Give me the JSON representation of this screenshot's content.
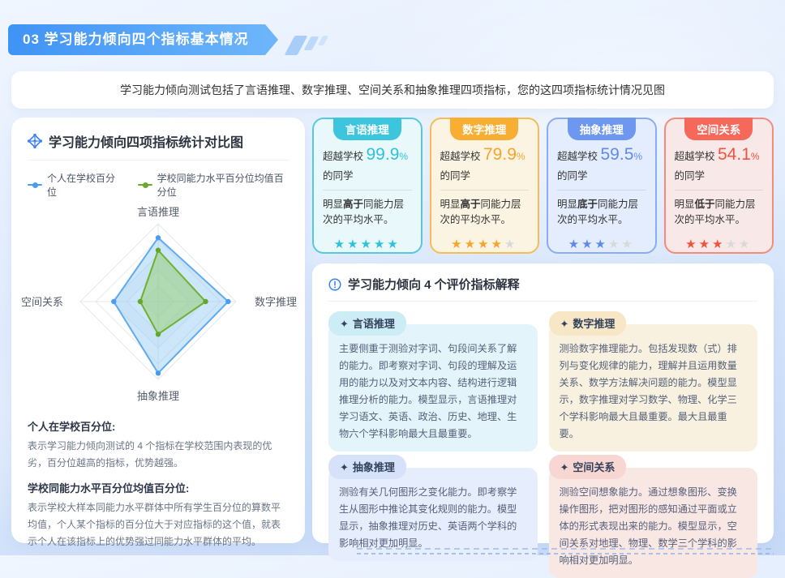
{
  "banner": {
    "title": "03 学习能力倾向四个指标基本情况"
  },
  "intro": {
    "text": "学习能力倾向测试包括了言语推理、数字推理、空间关系和抽象推理四项指标，您的这四项指标统计情况见图"
  },
  "radar_panel": {
    "title": "学习能力倾向四项指标统计对比图",
    "legend": [
      {
        "label": "个人在学校百分位",
        "color": "#4a9cf0"
      },
      {
        "label": "学校同能力水平百分位均值百分位",
        "color": "#6aa92e"
      }
    ],
    "notes": [
      {
        "heading": "个人在学校百分位:",
        "body": "表示学习能力倾向测试的 4 个指标在学校范围内表现的优劣，百分位越高的指标，优势越强。"
      },
      {
        "heading": "学校同能力水平百分位均值百分位:",
        "body": "表示学校大样本同能力水平群体中所有学生百分位的算数平均值，个人某个指标的百分位大于对应指标的这个值，就表示个人在该指标上的优势强过同能力水平群体的平均。"
      }
    ]
  },
  "chart_data": {
    "type": "radar",
    "categories": [
      "言语推理",
      "数字推理",
      "抽象推理",
      "空间关系"
    ],
    "series": [
      {
        "name": "个人在学校百分位",
        "color": "#62aaef",
        "fill": "rgba(141,199,244,0.45)",
        "dot": "#4a9cf0",
        "values": [
          82,
          90,
          92,
          57
        ]
      },
      {
        "name": "学校同能力水平百分位均值百分位",
        "color": "#6fb12f",
        "fill": "rgba(148,205,106,0.50)",
        "dot": "#63a82a",
        "values": [
          66,
          61,
          42,
          23
        ]
      }
    ],
    "max": 100,
    "levels": 5,
    "grid": "diamond",
    "legend_position": "top"
  },
  "score_common": {
    "prefix": "超越学校",
    "percent_sign": "%",
    "suffix": "的同学",
    "desc_pre": "明显",
    "desc_post": "同能力层次的平均水平。"
  },
  "score_cards": [
    {
      "label": "言语推理",
      "percent": "99.9",
      "desc_bold": "高于",
      "stars_active": "★★★★★",
      "stars_inactive": "",
      "accent": "#2fc1dc"
    },
    {
      "label": "数字推理",
      "percent": "79.9",
      "desc_bold": "高于",
      "stars_active": "★★★★",
      "stars_inactive": "★",
      "accent": "#f6a42a"
    },
    {
      "label": "抽象推理",
      "percent": "59.5",
      "desc_bold": "底于",
      "stars_active": "★★★",
      "stars_inactive": "★★",
      "accent": "#5d8bec"
    },
    {
      "label": "空间关系",
      "percent": "54.1",
      "desc_bold": "低于",
      "stars_active": "★★★",
      "stars_inactive": "★★",
      "accent": "#f4513d"
    }
  ],
  "explain_panel": {
    "title": "学习能力倾向 4 个评价指标解释",
    "bullet": "✦",
    "items": [
      {
        "label": "言语推理",
        "text": "主要侧重于测验对字词、句段间关系了解的能力。即考察对字词、句段的理解及运用的能力以及对文本内容、结构进行逻辑推理分析的能力。模型显示，言语推理对学习语文、英语、政治、历史、地理、生物六个学科影响最大且最重要。"
      },
      {
        "label": "数字推理",
        "text": "测验数字推理能力。包括发现数（式）排列与变化规律的能力，理解并且运用数量关系、数学方法解决问题的能力。模型显示，数字推理对学习数学、物理、化学三个学科影响最大且最重要。最大且最重要。"
      },
      {
        "label": "抽象推理",
        "text": "测验有关几何图形之变化能力。即考察学生从图形中推论其变化规则的能力。模型显示，抽象推理对历史、英语两个学科的影响相对更加明显。"
      },
      {
        "label": "空间关系",
        "text": "测验空间想象能力。通过想象图形、变换操作图形，把对图形的感知通过平面或立体的形式表现出来的能力。模型显示，空间关系对地理、物理、数学三个学科的影响相对更加明显。"
      }
    ]
  },
  "colors": {
    "banner_gradient": [
      "#3f93f6",
      "#6db5fa"
    ],
    "verbal": "#2fc1dc",
    "numeric": "#f6a42a",
    "abstract": "#5d8bec",
    "spatial": "#f4513d",
    "star_inactive": "#d9d9d9"
  }
}
